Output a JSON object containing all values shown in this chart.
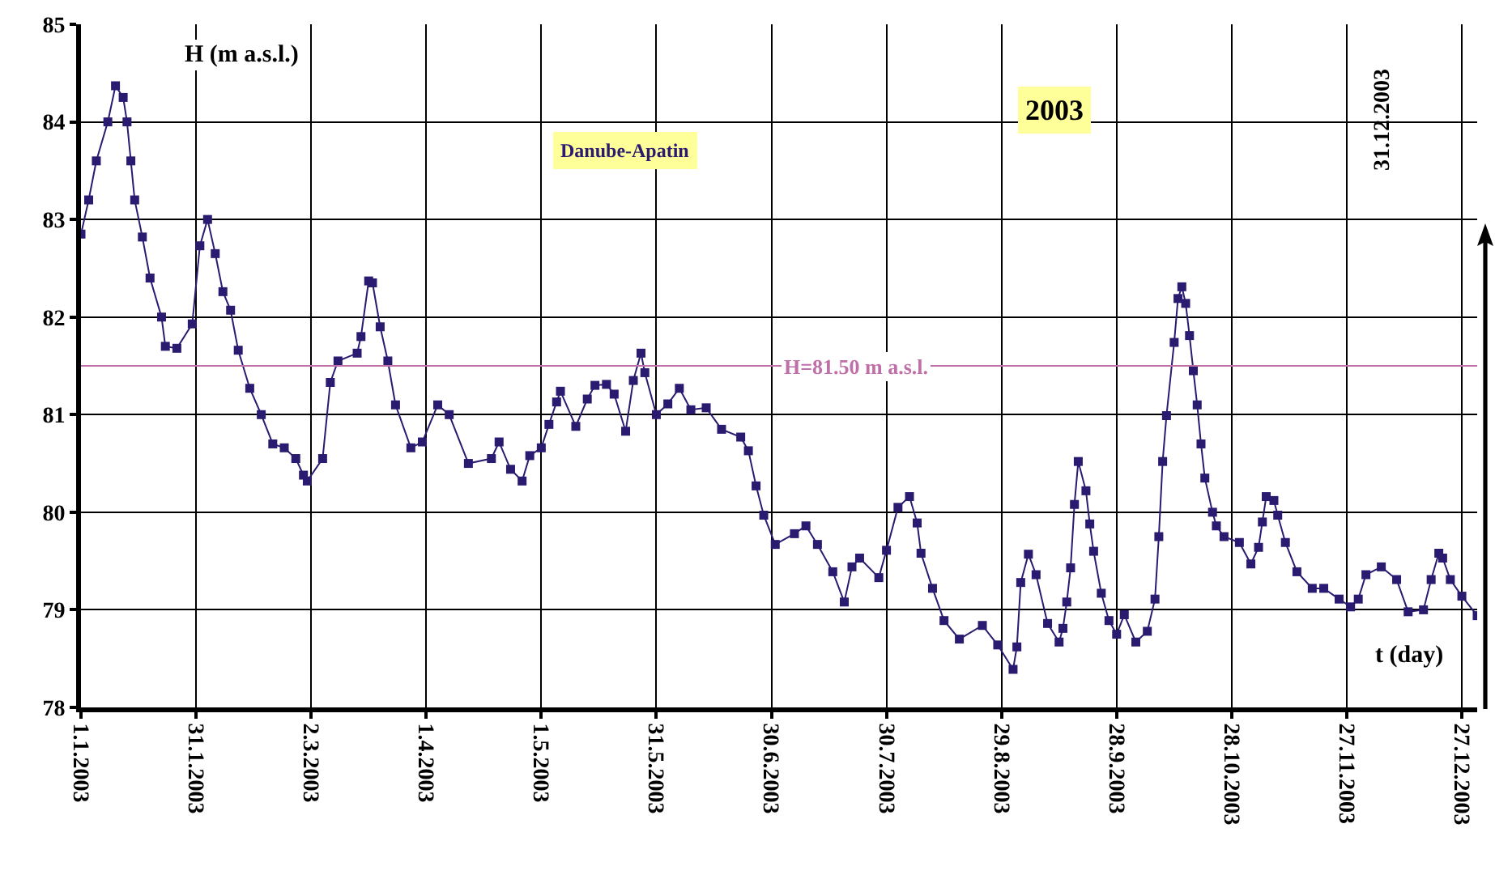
{
  "chart_data": {
    "type": "line",
    "ylabel": "H (m a.s.l.)",
    "xlabel": "t (day)",
    "annotations": [
      "Danube-Apatin",
      "2003",
      "31.12.2003"
    ],
    "x": [
      "2003-01-01",
      "2003-01-03",
      "2003-01-05",
      "2003-01-08",
      "2003-01-10",
      "2003-01-12",
      "2003-01-13",
      "2003-01-14",
      "2003-01-15",
      "2003-01-17",
      "2003-01-19",
      "2003-01-22",
      "2003-01-23",
      "2003-01-26",
      "2003-01-30",
      "2003-02-01",
      "2003-02-03",
      "2003-02-05",
      "2003-02-07",
      "2003-02-09",
      "2003-02-11",
      "2003-02-14",
      "2003-02-17",
      "2003-02-20",
      "2003-02-23",
      "2003-02-26",
      "2003-02-28",
      "2003-03-01",
      "2003-03-05",
      "2003-03-07",
      "2003-03-09",
      "2003-03-14",
      "2003-03-15",
      "2003-03-17",
      "2003-03-18",
      "2003-03-20",
      "2003-03-22",
      "2003-03-24",
      "2003-03-28",
      "2003-03-31",
      "2003-04-04",
      "2003-04-07",
      "2003-04-12",
      "2003-04-18",
      "2003-04-20",
      "2003-04-23",
      "2003-04-26",
      "2003-04-28",
      "2003-05-01",
      "2003-05-03",
      "2003-05-05",
      "2003-05-06",
      "2003-05-10",
      "2003-05-13",
      "2003-05-15",
      "2003-05-18",
      "2003-05-20",
      "2003-05-23",
      "2003-05-25",
      "2003-05-27",
      "2003-05-28",
      "2003-05-31",
      "2003-06-03",
      "2003-06-06",
      "2003-06-09",
      "2003-06-13",
      "2003-06-17",
      "2003-06-22",
      "2003-06-24",
      "2003-06-26",
      "2003-06-28",
      "2003-07-01",
      "2003-07-06",
      "2003-07-09",
      "2003-07-12",
      "2003-07-16",
      "2003-07-19",
      "2003-07-21",
      "2003-07-23",
      "2003-07-28",
      "2003-07-30",
      "2003-08-02",
      "2003-08-05",
      "2003-08-07",
      "2003-08-08",
      "2003-08-11",
      "2003-08-14",
      "2003-08-18",
      "2003-08-24",
      "2003-08-28",
      "2003-09-01",
      "2003-09-02",
      "2003-09-03",
      "2003-09-05",
      "2003-09-07",
      "2003-09-10",
      "2003-09-13",
      "2003-09-14",
      "2003-09-15",
      "2003-09-16",
      "2003-09-17",
      "2003-09-18",
      "2003-09-20",
      "2003-09-21",
      "2003-09-22",
      "2003-09-24",
      "2003-09-26",
      "2003-09-28",
      "2003-09-30",
      "2003-10-03",
      "2003-10-06",
      "2003-10-08",
      "2003-10-09",
      "2003-10-10",
      "2003-10-11",
      "2003-10-13",
      "2003-10-14",
      "2003-10-15",
      "2003-10-16",
      "2003-10-17",
      "2003-10-18",
      "2003-10-19",
      "2003-10-20",
      "2003-10-21",
      "2003-10-23",
      "2003-10-24",
      "2003-10-26",
      "2003-10-30",
      "2003-11-02",
      "2003-11-04",
      "2003-11-05",
      "2003-11-06",
      "2003-11-08",
      "2003-11-09",
      "2003-11-11",
      "2003-11-14",
      "2003-11-18",
      "2003-11-21",
      "2003-11-25",
      "2003-11-28",
      "2003-11-30",
      "2003-12-02",
      "2003-12-06",
      "2003-12-10",
      "2003-12-13",
      "2003-12-17",
      "2003-12-19",
      "2003-12-21",
      "2003-12-22",
      "2003-12-24",
      "2003-12-27",
      "2003-12-31"
    ],
    "series": [
      {
        "color": "#2a1a70",
        "values": [
          82.85,
          83.2,
          83.6,
          84.0,
          84.37,
          84.25,
          84.0,
          83.6,
          83.2,
          82.82,
          82.4,
          82.0,
          81.7,
          81.68,
          81.93,
          82.73,
          83.0,
          82.65,
          82.26,
          82.07,
          81.66,
          81.27,
          81.0,
          80.7,
          80.66,
          80.55,
          80.38,
          80.32,
          80.55,
          81.33,
          81.55,
          81.63,
          81.8,
          82.37,
          82.35,
          81.9,
          81.55,
          81.1,
          80.66,
          80.72,
          81.1,
          81.0,
          80.5,
          80.55,
          80.72,
          80.44,
          80.32,
          80.58,
          80.66,
          80.9,
          81.13,
          81.24,
          80.88,
          81.16,
          81.3,
          81.31,
          81.21,
          80.83,
          81.35,
          81.63,
          81.43,
          81.0,
          81.11,
          81.27,
          81.05,
          81.07,
          80.85,
          80.77,
          80.63,
          80.27,
          79.97,
          79.67,
          79.78,
          79.86,
          79.67,
          79.39,
          79.08,
          79.44,
          79.53,
          79.33,
          79.61,
          80.05,
          80.16,
          79.89,
          79.58,
          79.22,
          78.89,
          78.7,
          78.84,
          78.64,
          78.39,
          78.62,
          79.28,
          79.57,
          79.36,
          78.86,
          78.67,
          78.81,
          79.08,
          79.43,
          80.08,
          80.52,
          80.22,
          79.88,
          79.6,
          79.17,
          78.89,
          78.75,
          78.95,
          78.67,
          78.78,
          79.11,
          79.75,
          80.52,
          80.99,
          81.74,
          82.19,
          82.31,
          82.14,
          81.81,
          81.45,
          81.1,
          80.7,
          80.35,
          80.0,
          79.86,
          79.75,
          79.69,
          79.47,
          79.64,
          79.9,
          80.16,
          80.12,
          79.97,
          79.69,
          79.39,
          79.22,
          79.22,
          79.11,
          79.03,
          79.11,
          79.36,
          79.44,
          79.31,
          78.98,
          79.0,
          79.31,
          79.58,
          79.53,
          79.31,
          79.14,
          78.94
        ]
      }
    ],
    "xlim": [
      "2003-01-01",
      "2003-12-31"
    ],
    "xticks": [
      {
        "value": "2003-01-01",
        "label": "1.1.2003"
      },
      {
        "value": "2003-01-31",
        "label": "31.1.2003"
      },
      {
        "value": "2003-03-02",
        "label": "2.3.2003"
      },
      {
        "value": "2003-04-01",
        "label": "1.4.2003"
      },
      {
        "value": "2003-05-01",
        "label": "1.5.2003"
      },
      {
        "value": "2003-05-31",
        "label": "31.5.2003"
      },
      {
        "value": "2003-06-30",
        "label": "30.6.2003"
      },
      {
        "value": "2003-07-30",
        "label": "30.7.2003"
      },
      {
        "value": "2003-08-29",
        "label": "29.8.2003"
      },
      {
        "value": "2003-09-28",
        "label": "28.9.2003"
      },
      {
        "value": "2003-10-28",
        "label": "28.10.2003"
      },
      {
        "value": "2003-11-27",
        "label": "27.11.2003"
      },
      {
        "value": "2003-12-27",
        "label": "27.12.2003"
      }
    ],
    "ylim": [
      78,
      85
    ],
    "yticks": [
      78,
      79,
      80,
      81,
      82,
      83,
      84,
      85
    ],
    "ref_lines": [
      {
        "axis": "y",
        "value": 81.5,
        "label": "H=81.50 m a.s.l.",
        "color": "#c070a8"
      }
    ],
    "grid": true,
    "marker": "square",
    "line_style": "solid"
  }
}
